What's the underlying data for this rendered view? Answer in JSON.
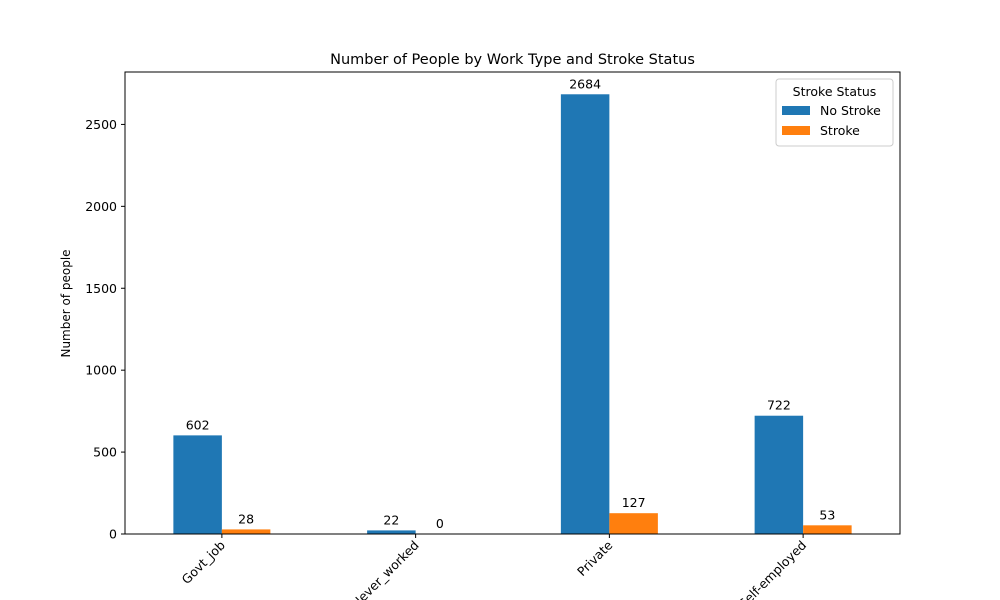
{
  "chart_data": {
    "type": "bar",
    "title": "Number of People by Work Type and Stroke Status",
    "xlabel": "",
    "ylabel": "Number of people",
    "categories": [
      "Govt_job",
      "Never_worked",
      "Private",
      "Self-employed"
    ],
    "series": [
      {
        "name": "No Stroke",
        "color": "#1f77b4",
        "values": [
          602,
          22,
          2684,
          722
        ]
      },
      {
        "name": "Stroke",
        "color": "#ff7f0e",
        "values": [
          28,
          0,
          127,
          53
        ]
      }
    ],
    "ylim": [
      0,
      2820
    ],
    "yticks": [
      0,
      500,
      1000,
      1500,
      2000,
      2500
    ],
    "legend": {
      "title": "Stroke Status",
      "position": "top-right"
    },
    "grid": false
  }
}
